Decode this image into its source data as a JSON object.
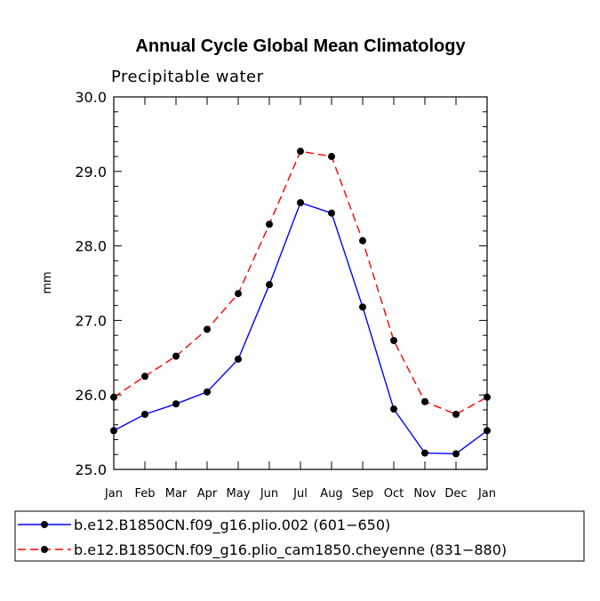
{
  "chart_data": {
    "type": "line",
    "title": "Annual Cycle Global Mean Climatology",
    "subtitle": "Precipitable water",
    "xlabel": "",
    "ylabel": "mm",
    "categories": [
      "Jan",
      "Feb",
      "Mar",
      "Apr",
      "May",
      "Jun",
      "Jul",
      "Aug",
      "Sep",
      "Oct",
      "Nov",
      "Dec",
      "Jan"
    ],
    "ylim": [
      25.0,
      30.0
    ],
    "yticks": [
      "25.0",
      "26.0",
      "27.0",
      "28.0",
      "29.0",
      "30.0"
    ],
    "series": [
      {
        "name": "b.e12.B1850CN.f09_g16.plio.002 (601−650)",
        "color": "#0000ff",
        "dash": "solid",
        "values": [
          25.52,
          25.74,
          25.88,
          26.04,
          26.48,
          27.48,
          28.58,
          28.44,
          27.18,
          25.81,
          25.22,
          25.21,
          25.52
        ]
      },
      {
        "name": "b.e12.B1850CN.f09_g16.plio_cam1850.cheyenne (831−880)",
        "color": "#ff0000",
        "dash": "dashed",
        "values": [
          25.97,
          26.25,
          26.52,
          26.88,
          27.36,
          28.29,
          29.27,
          29.2,
          28.07,
          26.73,
          25.91,
          25.74,
          25.97
        ]
      }
    ],
    "grid": false,
    "legend_position": "bottom"
  }
}
